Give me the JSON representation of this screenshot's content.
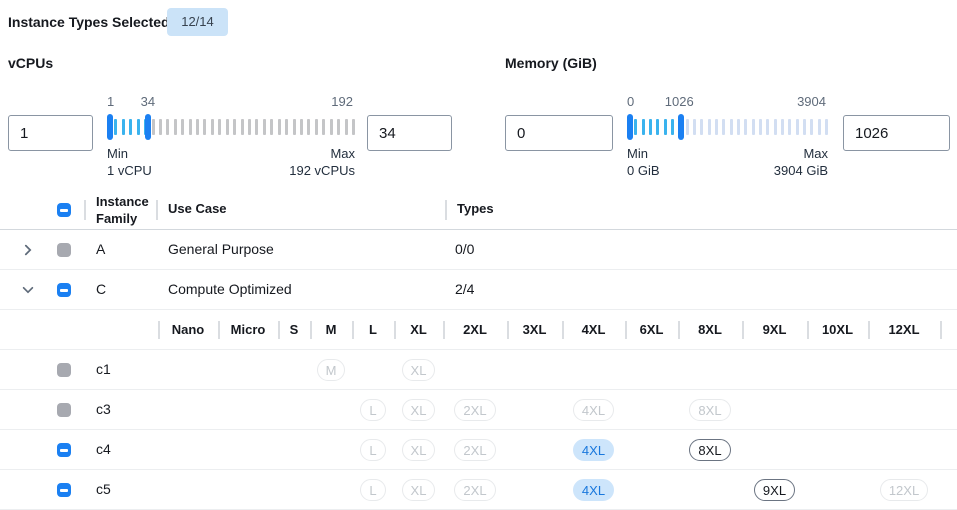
{
  "header": {
    "label": "Instance Types Selected:",
    "badge": "12/14"
  },
  "vcpus": {
    "title": "vCPUs",
    "from_value": "1",
    "to_value": "34",
    "scale": {
      "low": "1",
      "mid": "34",
      "high": "192"
    },
    "min_label": "Min",
    "min_caption": "1 vCPU",
    "max_label": "Max",
    "max_caption": "192 vCPUs",
    "slider": {
      "ticks": 34,
      "active_until": 5,
      "handle1_pct": 0,
      "handle2_pct": 16.5
    }
  },
  "memory": {
    "title": "Memory (GiB)",
    "from_value": "0",
    "to_value": "1026",
    "scale": {
      "low": "0",
      "mid": "1026",
      "high": "3904"
    },
    "min_label": "Min",
    "min_caption": "0 GiB",
    "max_label": "Max",
    "max_caption": "3904 GiB",
    "slider": {
      "ticks": 28,
      "active_until": 7,
      "handle1_pct": 0,
      "handle2_pct": 26.9
    }
  },
  "table": {
    "select_all_state": "indeterminate",
    "columns": {
      "family": "Instance Family",
      "use_case": "Use Case",
      "types": "Types"
    },
    "family_rows": [
      {
        "expanded": false,
        "checkbox": "disabled",
        "family": "A",
        "use_case": "General Purpose",
        "types": "0/0"
      },
      {
        "expanded": true,
        "checkbox": "indeterminate",
        "family": "C",
        "use_case": "Compute Optimized",
        "types": "2/4"
      }
    ],
    "sizes": [
      "Nano",
      "Micro",
      "S",
      "M",
      "L",
      "XL",
      "2XL",
      "3XL",
      "4XL",
      "6XL",
      "8XL",
      "9XL",
      "10XL",
      "12XL"
    ],
    "type_rows": [
      {
        "checkbox": "disabled",
        "name": "c1",
        "pills": [
          {
            "size": "M",
            "state": "disabled"
          },
          {
            "size": "XL",
            "state": "disabled"
          }
        ]
      },
      {
        "checkbox": "disabled",
        "name": "c3",
        "pills": [
          {
            "size": "L",
            "state": "disabled"
          },
          {
            "size": "XL",
            "state": "disabled"
          },
          {
            "size": "2XL",
            "state": "disabled"
          },
          {
            "size": "4XL",
            "state": "disabled"
          },
          {
            "size": "8XL",
            "state": "disabled"
          }
        ]
      },
      {
        "checkbox": "indeterminate",
        "name": "c4",
        "pills": [
          {
            "size": "L",
            "state": "disabled"
          },
          {
            "size": "XL",
            "state": "disabled"
          },
          {
            "size": "2XL",
            "state": "disabled"
          },
          {
            "size": "4XL",
            "state": "selected"
          },
          {
            "size": "8XL",
            "state": "enabled"
          }
        ]
      },
      {
        "checkbox": "indeterminate",
        "name": "c5",
        "pills": [
          {
            "size": "L",
            "state": "disabled"
          },
          {
            "size": "XL",
            "state": "disabled"
          },
          {
            "size": "2XL",
            "state": "disabled"
          },
          {
            "size": "4XL",
            "state": "selected"
          },
          {
            "size": "9XL",
            "state": "enabled"
          },
          {
            "size": "12XL",
            "state": "disabled"
          }
        ]
      }
    ]
  },
  "colors": {
    "accent_blue": "#1b80f2",
    "tick_active": "#3ab3ee",
    "tick_inactive_vcpu": "#c4c5c7",
    "tick_inactive_memory": "#d2def2",
    "badge_bg": "#cbe3f8",
    "selected_pill_bg": "#cde5fb",
    "selected_pill_text": "#1877dd",
    "disabled_gray": "#a7a9b0"
  }
}
